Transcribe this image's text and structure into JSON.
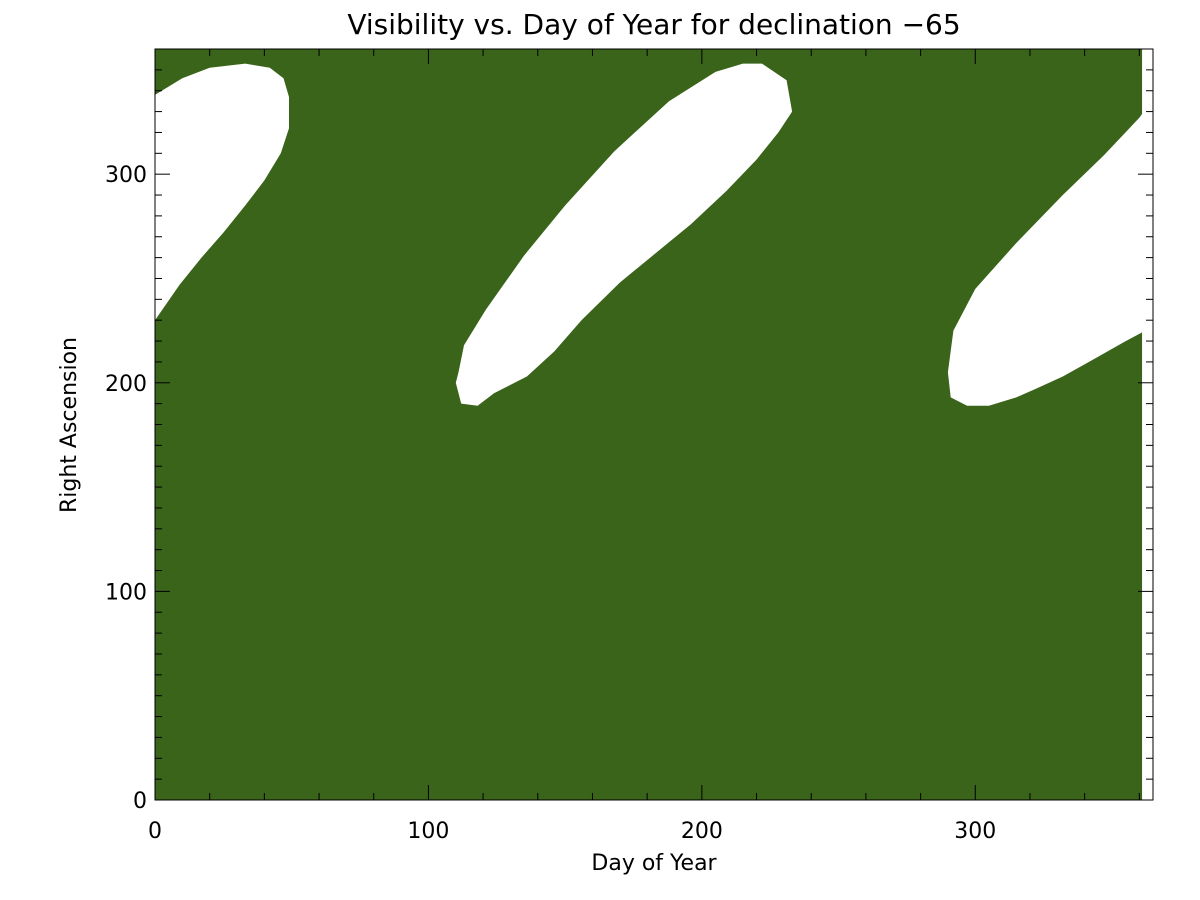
{
  "chart_data": {
    "type": "heatmap",
    "title": "Visibility vs. Day of Year for declination −65",
    "xlabel": "Day of Year",
    "ylabel": "Right Ascension",
    "xlim": [
      0,
      365
    ],
    "ylim": [
      0,
      360
    ],
    "xticks": [
      {
        "value": 0,
        "label": "0"
      },
      {
        "value": 100,
        "label": "100"
      },
      {
        "value": 200,
        "label": "200"
      },
      {
        "value": 300,
        "label": "300"
      }
    ],
    "yticks": [
      {
        "value": 0,
        "label": "0"
      },
      {
        "value": 100,
        "label": "100"
      },
      {
        "value": 200,
        "label": "200"
      },
      {
        "value": 300,
        "label": "300"
      }
    ],
    "fill_color": "#3a6419",
    "gap_color": "#ffffff",
    "regions": [
      {
        "day_range": [
          0,
          49
        ],
        "outline": [
          [
            0,
            338
          ],
          [
            10,
            346
          ],
          [
            20,
            351
          ],
          [
            33,
            353
          ],
          [
            42,
            351
          ],
          [
            47,
            346
          ],
          [
            49,
            337
          ],
          [
            49,
            322
          ],
          [
            46,
            310
          ],
          [
            40,
            297
          ],
          [
            33,
            285
          ],
          [
            25,
            272
          ],
          [
            17,
            260
          ],
          [
            9,
            247
          ],
          [
            0,
            230
          ]
        ]
      },
      {
        "day_range": [
          110,
          233
        ],
        "outline": [
          [
            111,
            205
          ],
          [
            113,
            218
          ],
          [
            121,
            235
          ],
          [
            135,
            261
          ],
          [
            150,
            285
          ],
          [
            168,
            311
          ],
          [
            188,
            335
          ],
          [
            205,
            349
          ],
          [
            215,
            353
          ],
          [
            222,
            353
          ],
          [
            231,
            345
          ],
          [
            233,
            330
          ],
          [
            228,
            320
          ],
          [
            220,
            307
          ],
          [
            209,
            292
          ],
          [
            196,
            276
          ],
          [
            183,
            262
          ],
          [
            170,
            248
          ],
          [
            156,
            230
          ],
          [
            146,
            215
          ],
          [
            136,
            203
          ],
          [
            124,
            195
          ],
          [
            118,
            189
          ],
          [
            112,
            190
          ],
          [
            110,
            200
          ]
        ]
      },
      {
        "day_range": [
          289,
          365
        ],
        "outline": [
          [
            290,
            205
          ],
          [
            292,
            225
          ],
          [
            300,
            245
          ],
          [
            315,
            267
          ],
          [
            332,
            290
          ],
          [
            347,
            309
          ],
          [
            360,
            327
          ],
          [
            365,
            336
          ],
          [
            365,
            227
          ],
          [
            355,
            220
          ],
          [
            343,
            211
          ],
          [
            332,
            203
          ],
          [
            322,
            197
          ],
          [
            315,
            193
          ],
          [
            305,
            189
          ],
          [
            297,
            189
          ],
          [
            291,
            193
          ]
        ]
      }
    ],
    "right_gap_day": 361
  }
}
